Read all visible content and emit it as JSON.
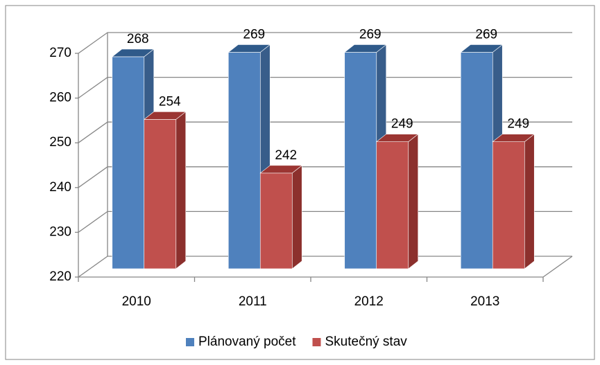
{
  "chart_data": {
    "type": "bar3d",
    "categories": [
      "2010",
      "2011",
      "2012",
      "2013"
    ],
    "series": [
      {
        "name": "Plánovaný počet",
        "color": "#4f81bd",
        "side": "#385d8a",
        "top": "#2f5a8a",
        "values": [
          268,
          269,
          269,
          269
        ]
      },
      {
        "name": "Skutečný stav",
        "color": "#c0504d",
        "side": "#8c302d",
        "top": "#9b3532",
        "values": [
          254,
          242,
          249,
          249
        ]
      }
    ],
    "ylim": [
      220,
      270
    ],
    "yticks": [
      220,
      230,
      240,
      250,
      260,
      270
    ],
    "grid": true,
    "legend": "bottom"
  }
}
